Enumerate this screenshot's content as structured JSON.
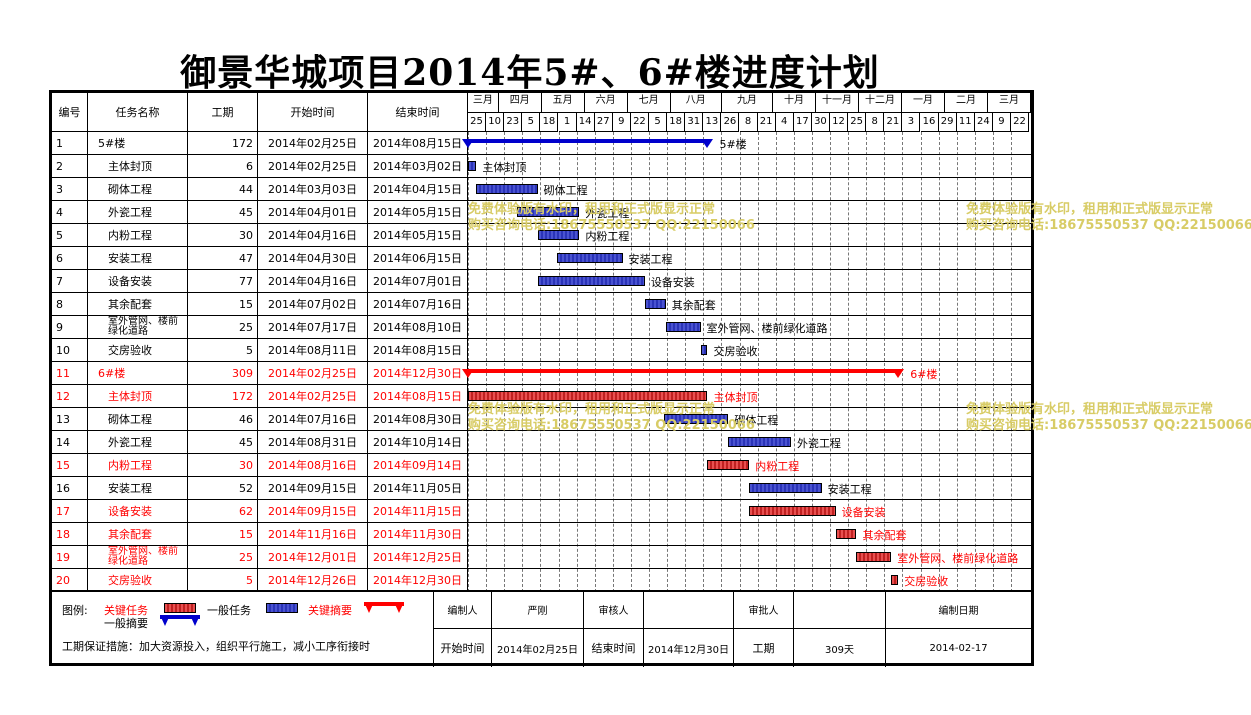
{
  "title": "御景华城项目2014年5#、6#楼进度计划",
  "headers": {
    "id": "编号",
    "name": "任务名称",
    "duration": "工期",
    "start": "开始时间",
    "end": "结束时间"
  },
  "months": [
    "三月",
    "四月",
    "五月",
    "六月",
    "七月",
    "八月",
    "九月",
    "十月",
    "十一月",
    "十二月",
    "一月",
    "二月",
    "三月"
  ],
  "days": [
    "25",
    "10",
    "23",
    "5",
    "18",
    "1",
    "14",
    "27",
    "9",
    "22",
    "5",
    "18",
    "31",
    "13",
    "26",
    "8",
    "21",
    "4",
    "17",
    "30",
    "12",
    "25",
    "8",
    "21",
    "3",
    "16",
    "29",
    "11",
    "24",
    "9",
    "22"
  ],
  "tasks": [
    {
      "id": "1",
      "name": "5#楼",
      "dur": "172",
      "start": "2014年02月25日",
      "end": "2014年08月15日",
      "red": false,
      "indent": false
    },
    {
      "id": "2",
      "name": "主体封顶",
      "dur": "6",
      "start": "2014年02月25日",
      "end": "2014年03月02日",
      "red": false,
      "indent": true
    },
    {
      "id": "3",
      "name": "砌体工程",
      "dur": "44",
      "start": "2014年03月03日",
      "end": "2014年04月15日",
      "red": false,
      "indent": true
    },
    {
      "id": "4",
      "name": "外瓷工程",
      "dur": "45",
      "start": "2014年04月01日",
      "end": "2014年05月15日",
      "red": false,
      "indent": true
    },
    {
      "id": "5",
      "name": "内粉工程",
      "dur": "30",
      "start": "2014年04月16日",
      "end": "2014年05月15日",
      "red": false,
      "indent": true
    },
    {
      "id": "6",
      "name": "安装工程",
      "dur": "47",
      "start": "2014年04月30日",
      "end": "2014年06月15日",
      "red": false,
      "indent": true
    },
    {
      "id": "7",
      "name": "设备安装",
      "dur": "77",
      "start": "2014年04月16日",
      "end": "2014年07月01日",
      "red": false,
      "indent": true
    },
    {
      "id": "8",
      "name": "其余配套",
      "dur": "15",
      "start": "2014年07月02日",
      "end": "2014年07月16日",
      "red": false,
      "indent": true
    },
    {
      "id": "9",
      "name": "室外管网、楼前绿化道路",
      "dur": "25",
      "start": "2014年07月17日",
      "end": "2014年08月10日",
      "red": false,
      "indent": true,
      "small": true
    },
    {
      "id": "10",
      "name": "交房验收",
      "dur": "5",
      "start": "2014年08月11日",
      "end": "2014年08月15日",
      "red": false,
      "indent": true
    },
    {
      "id": "11",
      "name": "6#楼",
      "dur": "309",
      "start": "2014年02月25日",
      "end": "2014年12月30日",
      "red": true,
      "indent": false
    },
    {
      "id": "12",
      "name": "主体封顶",
      "dur": "172",
      "start": "2014年02月25日",
      "end": "2014年08月15日",
      "red": true,
      "indent": true
    },
    {
      "id": "13",
      "name": "砌体工程",
      "dur": "46",
      "start": "2014年07月16日",
      "end": "2014年08月30日",
      "red": false,
      "indent": true
    },
    {
      "id": "14",
      "name": "外瓷工程",
      "dur": "45",
      "start": "2014年08月31日",
      "end": "2014年10月14日",
      "red": false,
      "indent": true
    },
    {
      "id": "15",
      "name": "内粉工程",
      "dur": "30",
      "start": "2014年08月16日",
      "end": "2014年09月14日",
      "red": true,
      "indent": true
    },
    {
      "id": "16",
      "name": "安装工程",
      "dur": "52",
      "start": "2014年09月15日",
      "end": "2014年11月05日",
      "red": false,
      "indent": true
    },
    {
      "id": "17",
      "name": "设备安装",
      "dur": "62",
      "start": "2014年09月15日",
      "end": "2014年11月15日",
      "red": true,
      "indent": true
    },
    {
      "id": "18",
      "name": "其余配套",
      "dur": "15",
      "start": "2014年11月16日",
      "end": "2014年11月30日",
      "red": true,
      "indent": true
    },
    {
      "id": "19",
      "name": "室外管网、楼前绿化道路",
      "dur": "25",
      "start": "2014年12月01日",
      "end": "2014年12月25日",
      "red": true,
      "indent": true,
      "small": true
    },
    {
      "id": "20",
      "name": "交房验收",
      "dur": "5",
      "start": "2014年12月26日",
      "end": "2014年12月30日",
      "red": true,
      "indent": true
    }
  ],
  "bar_labels": [
    "5#楼",
    "主体封顶",
    "砌体工程",
    "外瓷工程",
    "内粉工程",
    "安装工程",
    "设备安装",
    "其余配套",
    "室外管网、楼前绿化道路",
    "交房验收",
    "6#楼",
    "主体封顶",
    "砌体工程",
    "外瓷工程",
    "内粉工程",
    "安装工程",
    "设备安装",
    "其余配套",
    "室外管网、楼前绿化道路",
    "交房验收"
  ],
  "watermark": {
    "line1": "免费体验版有水印，租用和正式版显示正常",
    "line2": "购买咨询电话:18675550537 QQ:22150066"
  },
  "legend": {
    "label": "图例:",
    "critical_task": "关键任务",
    "normal_task": "一般任务",
    "critical_summary": "关键摘要",
    "normal_summary": "一般摘要",
    "note": "工期保证措施：加大资源投入，组织平行施工，减小工序衔接时"
  },
  "footer": {
    "editor_label": "编制人",
    "editor": "严刚",
    "reviewer_label": "审核人",
    "reviewer": "",
    "approver_label": "审批人",
    "approver": "",
    "date_label": "编制日期",
    "start_label": "开始时间",
    "start": "2014年02月25日",
    "end_label": "结束时间",
    "end": "2014年12月30日",
    "duration_label": "工期",
    "duration": "309天",
    "date": "2014-02-17"
  },
  "colors": {
    "critical": "#ff0000",
    "normal": "#0000cc"
  }
}
